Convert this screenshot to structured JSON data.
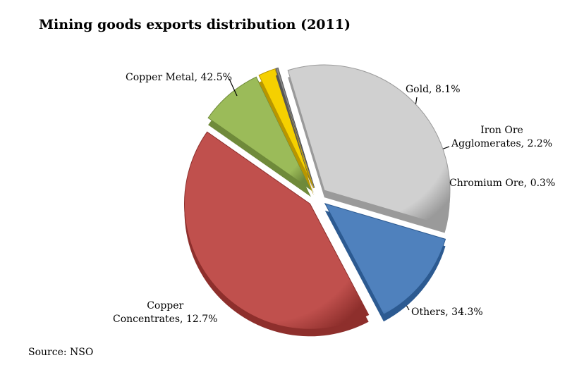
{
  "chart_data": {
    "type": "pie",
    "title": "Mining goods exports distribution (2011)",
    "source": "Source: NSO",
    "slices": [
      {
        "name": "Gold",
        "value": 8.1,
        "label_lines": [
          "Gold, 8.1%"
        ],
        "color": "#9bbb59",
        "dark": "#6f8a3a"
      },
      {
        "name": "Iron Ore Agglomerates",
        "value": 2.2,
        "label_lines": [
          "Iron Ore",
          "Agglomerates, 2.2%"
        ],
        "color": "#f5d000",
        "dark": "#b89600"
      },
      {
        "name": "Chromium Ore",
        "value": 0.3,
        "label_lines": [
          "Chromium Ore, 0.3%"
        ],
        "color": "#8a8a8a",
        "dark": "#555555"
      },
      {
        "name": "Others",
        "value": 34.3,
        "label_lines": [
          "Others, 34.3%"
        ],
        "color": "#d0d0d0",
        "dark": "#9a9a9a"
      },
      {
        "name": "Copper Concentrates",
        "value": 12.7,
        "label_lines": [
          "Copper",
          "Concentrates, 12.7%"
        ],
        "color": "#4f81bd",
        "dark": "#2c5a91"
      },
      {
        "name": "Copper Metal",
        "value": 42.5,
        "label_lines": [
          "Copper Metal, 42.5%"
        ],
        "color": "#c0504d",
        "dark": "#8e2f2c"
      }
    ]
  }
}
